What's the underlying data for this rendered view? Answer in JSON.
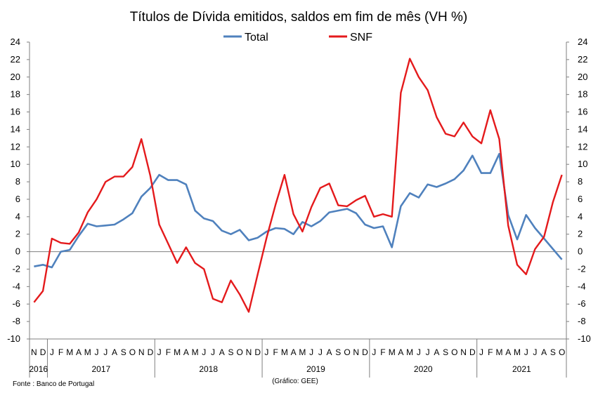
{
  "colors": {
    "total": "#4f81bd",
    "snf": "#e41a1c"
  },
  "chart_data": {
    "type": "line",
    "title": "Títulos de Dívida emitidos, saldos em fim de mês  (VH %)",
    "ylim": [
      -10,
      24
    ],
    "y_ticks": [
      -10,
      -8,
      -6,
      -4,
      -2,
      0,
      2,
      4,
      6,
      8,
      10,
      12,
      14,
      16,
      18,
      20,
      22,
      24
    ],
    "grid": false,
    "legend_position": "top-center",
    "month_labels": [
      "N",
      "D",
      "J",
      "F",
      "M",
      "A",
      "M",
      "J",
      "J",
      "A",
      "S",
      "O",
      "N",
      "D",
      "J",
      "F",
      "M",
      "A",
      "M",
      "J",
      "J",
      "A",
      "S",
      "O",
      "N",
      "D",
      "J",
      "F",
      "M",
      "A",
      "M",
      "J",
      "J",
      "A",
      "S",
      "O",
      "N",
      "D",
      "J",
      "F",
      "M",
      "A",
      "M",
      "J",
      "J",
      "A",
      "S",
      "O",
      "N",
      "D",
      "J",
      "F",
      "M",
      "A",
      "M",
      "J",
      "J",
      "A",
      "S",
      "O"
    ],
    "year_labels": [
      "2016",
      "2017",
      "2018",
      "2019",
      "2020",
      "2021"
    ],
    "series": [
      {
        "name": "Total",
        "values": [
          -1.7,
          -1.5,
          -1.8,
          0.0,
          0.2,
          1.8,
          3.2,
          2.9,
          3.0,
          3.1,
          3.7,
          4.4,
          6.3,
          7.3,
          8.8,
          8.2,
          8.2,
          7.7,
          4.7,
          3.8,
          3.5,
          2.4,
          2.0,
          2.5,
          1.3,
          1.6,
          2.3,
          2.7,
          2.6,
          2.0,
          3.4,
          2.9,
          3.5,
          4.5,
          4.7,
          4.9,
          4.4,
          3.1,
          2.7,
          2.9,
          0.5,
          5.2,
          6.7,
          6.2,
          7.7,
          7.4,
          7.8,
          8.3,
          9.3,
          11.0,
          9.0,
          9.0,
          11.2,
          4.2,
          1.4,
          4.2,
          2.7,
          1.5,
          0.3,
          -0.9
        ]
      },
      {
        "name": "SNF",
        "values": [
          -5.8,
          -4.5,
          1.5,
          1.0,
          0.9,
          2.2,
          4.5,
          6.0,
          8.0,
          8.6,
          8.6,
          9.7,
          12.9,
          8.7,
          3.1,
          0.9,
          -1.3,
          0.5,
          -1.3,
          -2.0,
          -5.4,
          -5.8,
          -3.3,
          -4.9,
          -6.9,
          -2.6,
          1.6,
          5.4,
          8.8,
          4.3,
          2.3,
          5.1,
          7.3,
          7.8,
          5.3,
          5.2,
          5.9,
          6.4,
          4.0,
          4.3,
          4.0,
          18.2,
          22.1,
          20.0,
          18.5,
          15.4,
          13.5,
          13.2,
          14.8,
          13.2,
          12.4,
          16.2,
          12.9,
          3.0,
          -1.5,
          -2.6,
          0.3,
          1.7,
          5.7,
          8.8
        ]
      }
    ],
    "notes": {
      "source": "Fonte : Banco de Portugal",
      "credit": "(Gráfico: GEE)"
    }
  }
}
